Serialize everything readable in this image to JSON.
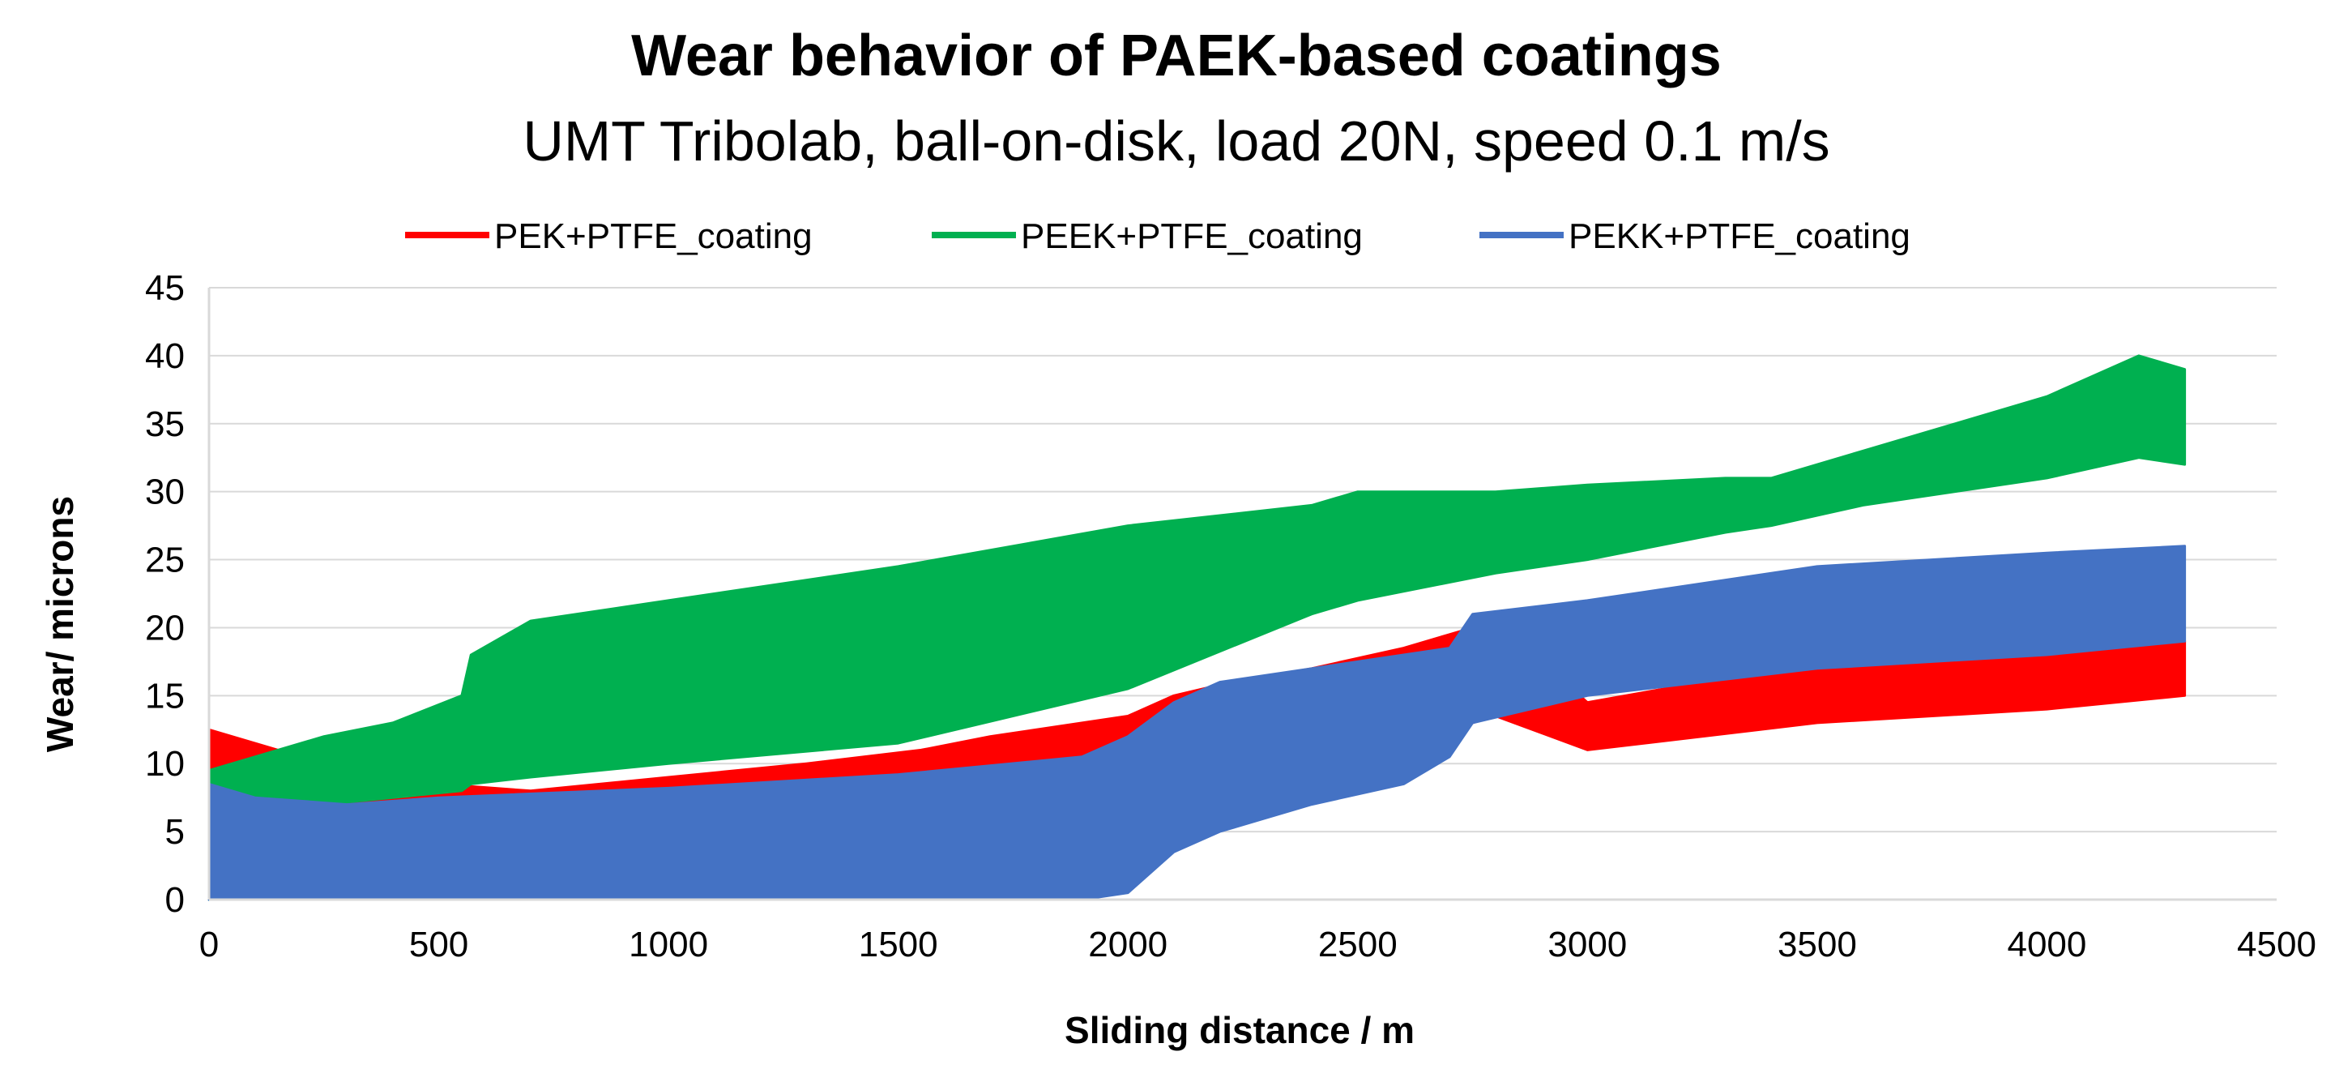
{
  "chart_data": {
    "type": "area",
    "title": "Wear behavior of PAEK-based coatings",
    "subtitle": "UMT Tribolab, ball-on-disk, load 20N, speed 0.1 m/s",
    "xlabel": "Sliding distance / m",
    "ylabel": "Wear/ microns",
    "xlim": [
      0,
      4500
    ],
    "ylim": [
      0,
      45
    ],
    "xticks": [
      0,
      500,
      1000,
      1500,
      2000,
      2500,
      3000,
      3500,
      4000,
      4500
    ],
    "yticks": [
      0,
      5,
      10,
      15,
      20,
      25,
      30,
      35,
      40,
      45
    ],
    "grid": "horizontal",
    "legend_position": "top",
    "series_draw_order": [
      "PEK+PTFE_coating",
      "PEEK+PTFE_coating",
      "PEKK+PTFE_coating"
    ],
    "legend_order": [
      "PEK+PTFE_coating",
      "PEEK+PTFE_coating",
      "PEKK+PTFE_coating"
    ],
    "series": [
      {
        "name": "PEK+PTFE_coating",
        "color": "#ff0000",
        "x": [
          0,
          100,
          200,
          300,
          500,
          700,
          1000,
          1300,
          1550,
          1700,
          2000,
          2100,
          2200,
          2400,
          2600,
          2700,
          2750,
          2800,
          3000,
          3500,
          4000,
          4300
        ],
        "upper": [
          12.5,
          11.5,
          10.5,
          9.5,
          8.5,
          8,
          9,
          10,
          11,
          12,
          13.5,
          15,
          15.8,
          17,
          18.5,
          19.5,
          20,
          20.5,
          14.5,
          17.5,
          18.5,
          19
        ],
        "lower": [
          9,
          8,
          6,
          4,
          0,
          0,
          0,
          0,
          0,
          1,
          3.5,
          6,
          7,
          9,
          11,
          12,
          13,
          13.5,
          11,
          13,
          14,
          15
        ]
      },
      {
        "name": "PEEK+PTFE_coating",
        "color": "#00b050",
        "x": [
          0,
          250,
          400,
          550,
          570,
          700,
          1000,
          1500,
          2000,
          2400,
          2500,
          2800,
          3000,
          3300,
          3400,
          3600,
          3800,
          4000,
          4200,
          4300
        ],
        "upper": [
          9.5,
          12,
          13,
          15,
          18,
          20.5,
          22,
          24.5,
          27.5,
          29,
          30,
          30,
          30.5,
          31,
          31,
          33,
          35,
          37,
          40,
          39
        ],
        "lower": [
          0,
          7,
          7.5,
          8,
          8.5,
          9,
          10,
          11.5,
          15.5,
          21,
          22,
          24,
          25,
          27,
          27.5,
          29,
          30,
          31,
          32.5,
          32
        ]
      },
      {
        "name": "PEKK+PTFE_coating",
        "color": "#4472c4",
        "x": [
          0,
          100,
          300,
          500,
          1000,
          1500,
          1900,
          2000,
          2100,
          2200,
          2400,
          2600,
          2700,
          2750,
          3000,
          3500,
          4000,
          4300
        ],
        "upper": [
          8.5,
          7.5,
          7,
          7.5,
          8.2,
          9.2,
          10.5,
          12,
          14.5,
          16,
          17,
          18,
          18.5,
          21,
          22,
          24.5,
          25.5,
          26
        ],
        "lower": [
          0,
          0,
          0,
          0,
          0,
          0,
          0,
          0.5,
          3.5,
          5,
          7,
          8.5,
          10.5,
          13,
          15,
          17,
          18,
          19
        ]
      }
    ]
  }
}
